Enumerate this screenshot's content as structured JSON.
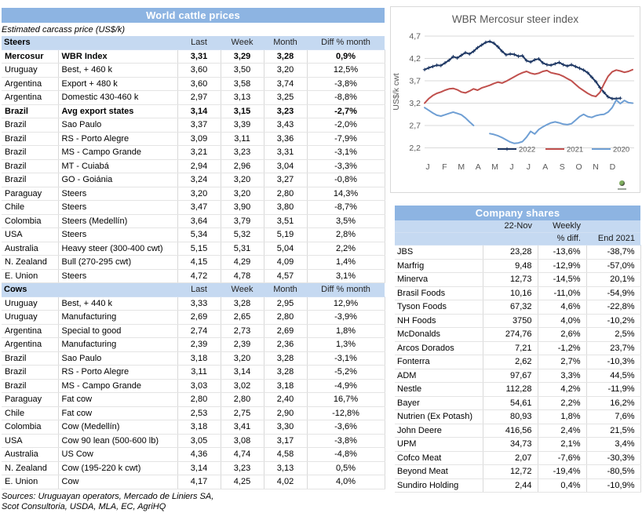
{
  "colors": {
    "title_bar_bg": "#8DB4E2",
    "title_bar_text": "#FFFFFF",
    "header_row_bg": "#C5D9F1",
    "grid_border": "#D9D9D9",
    "series_2022": "#1F3864",
    "series_2021": "#C0504D",
    "series_2020": "#6F9FD4",
    "axis_text": "#595959"
  },
  "cattle_table": {
    "title": "World cattle prices",
    "subtitle": "Estimated carcass price (US$/k)",
    "columns": [
      "Last",
      "Week",
      "Month",
      "Diff % month"
    ],
    "sections": [
      {
        "label": "Steers",
        "rows": [
          {
            "c": "Mercosur",
            "d": "WBR Index",
            "v": [
              "3,31",
              "3,29",
              "3,28",
              "0,9%"
            ],
            "bold": true
          },
          {
            "c": "Uruguay",
            "d": "Best, + 460 k",
            "v": [
              "3,60",
              "3,50",
              "3,20",
              "12,5%"
            ]
          },
          {
            "c": "Argentina",
            "d": "Export + 480 k",
            "v": [
              "3,60",
              "3,58",
              "3,74",
              "-3,8%"
            ]
          },
          {
            "c": "Argentina",
            "d": "Domestic 430-460 k",
            "v": [
              "2,97",
              "3,13",
              "3,25",
              "-8,8%"
            ]
          },
          {
            "c": "Brazil",
            "d": "Avg export states",
            "v": [
              "3,14",
              "3,15",
              "3,23",
              "-2,7%"
            ],
            "bold": true
          },
          {
            "c": "Brazil",
            "d": "Sao Paulo",
            "v": [
              "3,37",
              "3,39",
              "3,43",
              "-2,0%"
            ]
          },
          {
            "c": "Brazil",
            "d": "RS - Porto Alegre",
            "v": [
              "3,09",
              "3,11",
              "3,36",
              "-7,9%"
            ]
          },
          {
            "c": "Brazil",
            "d": "MS - Campo Grande",
            "v": [
              "3,21",
              "3,23",
              "3,31",
              "-3,1%"
            ]
          },
          {
            "c": "Brazil",
            "d": "MT - Cuiabá",
            "v": [
              "2,94",
              "2,96",
              "3,04",
              "-3,3%"
            ]
          },
          {
            "c": "Brazil",
            "d": "GO - Goiánia",
            "v": [
              "3,24",
              "3,20",
              "3,27",
              "-0,8%"
            ]
          },
          {
            "c": "Paraguay",
            "d": "Steers",
            "v": [
              "3,20",
              "3,20",
              "2,80",
              "14,3%"
            ]
          },
          {
            "c": "Chile",
            "d": "Steers",
            "v": [
              "3,47",
              "3,90",
              "3,80",
              "-8,7%"
            ]
          },
          {
            "c": "Colombia",
            "d": "Steers (Medellín)",
            "v": [
              "3,64",
              "3,79",
              "3,51",
              "3,5%"
            ]
          },
          {
            "c": "USA",
            "d": "Steers",
            "v": [
              "5,34",
              "5,32",
              "5,19",
              "2,8%"
            ]
          },
          {
            "c": "Australia",
            "d": "Heavy steer (300-400 cwt)",
            "v": [
              "5,15",
              "5,31",
              "5,04",
              "2,2%"
            ]
          },
          {
            "c": "N. Zealand",
            "d": "Bull (270-295 cwt)",
            "v": [
              "4,15",
              "4,29",
              "4,09",
              "1,4%"
            ]
          },
          {
            "c": "E. Union",
            "d": "Steers",
            "v": [
              "4,72",
              "4,78",
              "4,57",
              "3,1%"
            ]
          }
        ]
      },
      {
        "label": "Cows",
        "rows": [
          {
            "c": "Uruguay",
            "d": "Best, + 440 k",
            "v": [
              "3,33",
              "3,28",
              "2,95",
              "12,9%"
            ]
          },
          {
            "c": "Uruguay",
            "d": "Manufacturing",
            "v": [
              "2,69",
              "2,65",
              "2,80",
              "-3,9%"
            ]
          },
          {
            "c": "Argentina",
            "d": "Special to good",
            "v": [
              "2,74",
              "2,73",
              "2,69",
              "1,8%"
            ]
          },
          {
            "c": "Argentina",
            "d": "Manufacturing",
            "v": [
              "2,39",
              "2,39",
              "2,36",
              "1,3%"
            ]
          },
          {
            "c": "Brazil",
            "d": "Sao Paulo",
            "v": [
              "3,18",
              "3,20",
              "3,28",
              "-3,1%"
            ]
          },
          {
            "c": "Brazil",
            "d": "RS - Porto Alegre",
            "v": [
              "3,11",
              "3,14",
              "3,28",
              "-5,2%"
            ]
          },
          {
            "c": "Brazil",
            "d": "MS - Campo Grande",
            "v": [
              "3,03",
              "3,02",
              "3,18",
              "-4,9%"
            ]
          },
          {
            "c": "Paraguay",
            "d": "Fat cow",
            "v": [
              "2,80",
              "2,80",
              "2,40",
              "16,7%"
            ]
          },
          {
            "c": "Chile",
            "d": "Fat cow",
            "v": [
              "2,53",
              "2,75",
              "2,90",
              "-12,8%"
            ]
          },
          {
            "c": "Colombia",
            "d": "Cow (Medellín)",
            "v": [
              "3,18",
              "3,41",
              "3,30",
              "-3,6%"
            ]
          },
          {
            "c": "USA",
            "d": "Cow 90 lean (500-600 lb)",
            "v": [
              "3,05",
              "3,08",
              "3,17",
              "-3,8%"
            ]
          },
          {
            "c": "Australia",
            "d": "US Cow",
            "v": [
              "4,36",
              "4,74",
              "4,58",
              "-4,8%"
            ]
          },
          {
            "c": "N. Zealand",
            "d": "Cow (195-220 k cwt)",
            "v": [
              "3,14",
              "3,23",
              "3,13",
              "0,5%"
            ]
          },
          {
            "c": "E. Union",
            "d": "Cow",
            "v": [
              "4,17",
              "4,25",
              "4,02",
              "4,0%"
            ]
          }
        ]
      }
    ],
    "sources": [
      "Sources: Uruguayan operators, Mercado de Liniers SA,",
      "Scot Consultoria, USDA, MLA, EC, AgriHQ"
    ]
  },
  "chart_data": {
    "type": "line",
    "title": "WBR Mercosur steer index",
    "ylabel": "US$/k cwt",
    "xlabel": "",
    "y_ticks": [
      "4,7",
      "4,2",
      "3,7",
      "3,2",
      "2,7",
      "2,2"
    ],
    "ylim": [
      2.2,
      4.7
    ],
    "x_labels": [
      "J",
      "F",
      "M",
      "A",
      "M",
      "J",
      "J",
      "A",
      "S",
      "O",
      "N",
      "D"
    ],
    "grid": true,
    "legend_position": "bottom-right",
    "series": [
      {
        "name": "2022",
        "color": "#1F3864",
        "marker": "plus",
        "values": [
          3.95,
          3.99,
          4.02,
          4.05,
          4.04,
          4.1,
          4.16,
          4.24,
          4.21,
          4.27,
          4.33,
          4.3,
          4.36,
          4.44,
          4.5,
          4.56,
          4.58,
          4.54,
          4.46,
          4.36,
          4.28,
          4.3,
          4.29,
          4.25,
          4.26,
          4.15,
          4.12,
          4.17,
          4.19,
          4.1,
          4.06,
          4.05,
          4.08,
          4.11,
          4.06,
          4.03,
          4.06,
          4.02,
          3.98,
          3.94,
          3.88,
          3.78,
          3.68,
          3.55,
          3.44,
          3.34,
          3.3,
          3.3,
          3.31
        ]
      },
      {
        "name": "2021",
        "color": "#C0504D",
        "marker": "none",
        "values": [
          3.2,
          3.3,
          3.37,
          3.42,
          3.45,
          3.49,
          3.52,
          3.53,
          3.5,
          3.45,
          3.43,
          3.47,
          3.52,
          3.49,
          3.54,
          3.57,
          3.6,
          3.64,
          3.67,
          3.65,
          3.69,
          3.74,
          3.79,
          3.84,
          3.88,
          3.91,
          3.87,
          3.85,
          3.87,
          3.91,
          3.93,
          3.88,
          3.86,
          3.84,
          3.8,
          3.75,
          3.7,
          3.62,
          3.54,
          3.48,
          3.42,
          3.37,
          3.35,
          3.44,
          3.63,
          3.8,
          3.9,
          3.94,
          3.92,
          3.89,
          3.91,
          3.95
        ]
      },
      {
        "name": "2020",
        "color": "#6F9FD4",
        "marker": "none",
        "values": [
          3.1,
          3.04,
          2.98,
          2.93,
          2.91,
          2.94,
          2.97,
          3.0,
          2.97,
          2.94,
          2.87,
          2.78,
          2.7,
          null,
          null,
          null,
          2.52,
          2.5,
          2.47,
          2.43,
          2.38,
          2.33,
          2.3,
          2.31,
          2.34,
          2.44,
          2.57,
          2.51,
          2.61,
          2.67,
          2.72,
          2.76,
          2.78,
          2.76,
          2.73,
          2.72,
          2.74,
          2.82,
          2.9,
          2.95,
          2.9,
          2.88,
          2.92,
          2.94,
          2.95,
          3.0,
          3.1,
          3.27,
          3.19,
          3.26,
          3.21,
          3.2
        ]
      }
    ]
  },
  "company_table": {
    "title": "Company shares",
    "header": {
      "date": "22-Nov",
      "weekly_line1": "Weekly",
      "weekly_line2": "% diff.",
      "end": "End 2021"
    },
    "rows": [
      {
        "name": "JBS",
        "price": "23,28",
        "weekly": "-13,6%",
        "end": "-38,7%"
      },
      {
        "name": "Marfrig",
        "price": "9,48",
        "weekly": "-12,9%",
        "end": "-57,0%"
      },
      {
        "name": "Minerva",
        "price": "12,73",
        "weekly": "-14,5%",
        "end": "20,1%"
      },
      {
        "name": "Brasil Foods",
        "price": "10,16",
        "weekly": "-11,0%",
        "end": "-54,9%"
      },
      {
        "name": "Tyson Foods",
        "price": "67,32",
        "weekly": "4,6%",
        "end": "-22,8%"
      },
      {
        "name": "NH Foods",
        "price": "3750",
        "weekly": "4,0%",
        "end": "-10,2%"
      },
      {
        "name": "McDonalds",
        "price": "274,76",
        "weekly": "2,6%",
        "end": "2,5%"
      },
      {
        "name": "Arcos Dorados",
        "price": "7,21",
        "weekly": "-1,2%",
        "end": "23,7%"
      },
      {
        "name": "Fonterra",
        "price": "2,62",
        "weekly": "2,7%",
        "end": "-10,3%"
      },
      {
        "name": "ADM",
        "price": "97,67",
        "weekly": "3,3%",
        "end": "44,5%"
      },
      {
        "name": "Nestle",
        "price": "112,28",
        "weekly": "4,2%",
        "end": "-11,9%"
      },
      {
        "name": "Bayer",
        "price": "54,61",
        "weekly": "2,2%",
        "end": "16,2%"
      },
      {
        "name": "Nutrien (Ex Potash)",
        "price": "80,93",
        "weekly": "1,8%",
        "end": "7,6%"
      },
      {
        "name": "John Deere",
        "price": "416,56",
        "weekly": "2,4%",
        "end": "21,5%"
      },
      {
        "name": "UPM",
        "price": "34,73",
        "weekly": "2,1%",
        "end": "3,4%"
      },
      {
        "name": "Cofco Meat",
        "price": "2,07",
        "weekly": "-7,6%",
        "end": "-30,3%"
      },
      {
        "name": "Beyond Meat",
        "price": "12,72",
        "weekly": "-19,4%",
        "end": "-80,5%"
      },
      {
        "name": "Sundiro Holding",
        "price": "2,44",
        "weekly": "0,4%",
        "end": "-10,9%"
      }
    ]
  }
}
